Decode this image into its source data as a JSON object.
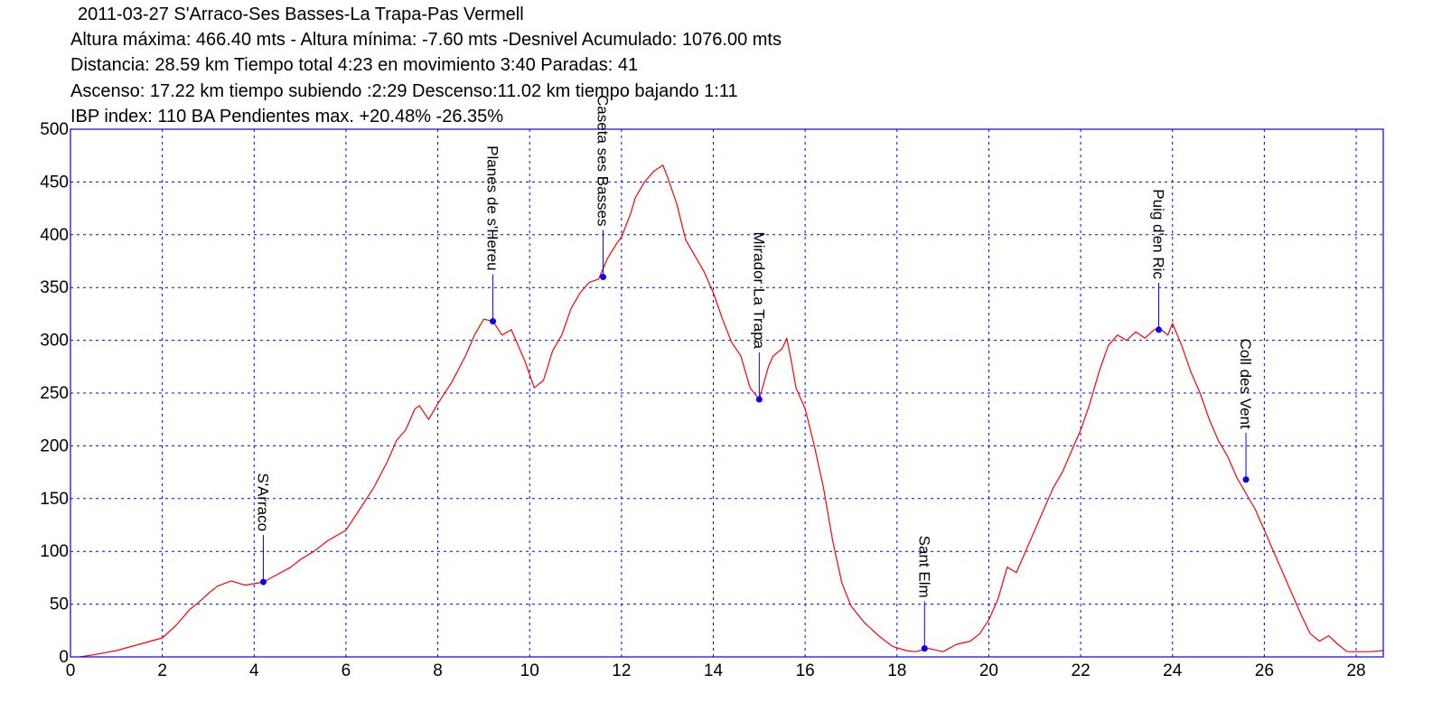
{
  "header": {
    "line1": "2011-03-27 S'Arraco-Ses Basses-La Trapa-Pas Vermell",
    "line2": "Altura máxima: 466.40 mts - Altura mínima: -7.60 mts -Desnivel Acumulado: 1076.00 mts",
    "line3": "Distancia: 28.59 km  Tiempo total 4:23  en movimiento 3:40 Paradas: 41",
    "line4": "Ascenso: 17.22 km  tiempo subiendo :2:29  Descenso:11.02 km tiempo bajando 1:11",
    "line5": " IBP index: 110 BA Pendientes max. +20.48%  -26.35%"
  },
  "chart_data": {
    "type": "line",
    "title": "2011-03-27 S'Arraco-Ses Basses-La Trapa-Pas Vermell",
    "xlabel": "",
    "ylabel": "",
    "xlim": [
      0,
      28.59
    ],
    "ylim": [
      0,
      500
    ],
    "grid": true,
    "xticks": [
      0,
      2,
      4,
      6,
      8,
      10,
      12,
      14,
      16,
      18,
      20,
      22,
      24,
      26,
      28
    ],
    "yticks": [
      0,
      50,
      100,
      150,
      200,
      250,
      300,
      350,
      400,
      450,
      500
    ],
    "colors": {
      "profile": "#ff0000",
      "waypoint": "#0000ff",
      "frame": "#0000ff",
      "grid": "#0000ff"
    },
    "series": [
      {
        "x": [
          0.2,
          0.5,
          1.0,
          1.5,
          2.0,
          2.3,
          2.6,
          2.8,
          3.0,
          3.2,
          3.5,
          3.8,
          4.2,
          4.5,
          4.8,
          5.0,
          5.3,
          5.6,
          6.0,
          6.3,
          6.6,
          6.9,
          7.1,
          7.3,
          7.5,
          7.6,
          7.8,
          8.0,
          8.3,
          8.6,
          8.8,
          9.0,
          9.2,
          9.4,
          9.6,
          9.7,
          9.9,
          10.1,
          10.3,
          10.5,
          10.7,
          10.9,
          11.1,
          11.3,
          11.5,
          11.7,
          11.9,
          12.0,
          12.2,
          12.3,
          12.5,
          12.7,
          12.9,
          13.0,
          13.2,
          13.4,
          13.6,
          13.8,
          14.0,
          14.2,
          14.4,
          14.6,
          14.8,
          15.0,
          15.2,
          15.3,
          15.5,
          15.6,
          15.7,
          15.8,
          16.0,
          16.2,
          16.4,
          16.6,
          16.8,
          17.0,
          17.3,
          17.6,
          17.9,
          18.2,
          18.4,
          18.7,
          19.0,
          19.3,
          19.6,
          19.8,
          20.0,
          20.2,
          20.3,
          20.4,
          20.6,
          20.8,
          21.0,
          21.2,
          21.4,
          21.6,
          21.8,
          22.0,
          22.2,
          22.4,
          22.6,
          22.8,
          23.0,
          23.2,
          23.4,
          23.6,
          23.7,
          23.9,
          24.0,
          24.2,
          24.4,
          24.6,
          24.8,
          25.0,
          25.2,
          25.4,
          25.6,
          25.8,
          26.0,
          26.2,
          26.5,
          26.8,
          27.0,
          27.2,
          27.4,
          27.6,
          27.8,
          28.0,
          28.3,
          28.59
        ],
        "values": [
          0,
          2,
          6,
          12,
          18,
          30,
          45,
          52,
          60,
          67,
          72,
          68,
          71,
          78,
          85,
          92,
          100,
          110,
          120,
          140,
          160,
          185,
          205,
          215,
          235,
          238,
          225,
          240,
          260,
          285,
          305,
          320,
          318,
          305,
          310,
          300,
          280,
          255,
          262,
          290,
          305,
          330,
          345,
          355,
          358,
          378,
          392,
          398,
          420,
          435,
          450,
          460,
          466,
          455,
          430,
          395,
          380,
          365,
          345,
          320,
          298,
          285,
          255,
          244,
          275,
          285,
          292,
          302,
          280,
          255,
          235,
          200,
          160,
          110,
          70,
          48,
          32,
          20,
          10,
          6,
          5,
          8,
          5,
          12,
          15,
          22,
          35,
          55,
          70,
          85,
          80,
          100,
          120,
          140,
          160,
          175,
          195,
          215,
          240,
          270,
          295,
          305,
          300,
          308,
          302,
          310,
          312,
          305,
          316,
          295,
          270,
          250,
          225,
          205,
          190,
          170,
          155,
          140,
          120,
          100,
          70,
          40,
          22,
          15,
          20,
          12,
          5,
          5,
          5,
          6
        ]
      }
    ],
    "waypoints": [
      {
        "name": "S'Arraco",
        "x": 4.2,
        "y": 71
      },
      {
        "name": "Planes de s'Hereu",
        "x": 9.2,
        "y": 318
      },
      {
        "name": "Caseta ses Basses",
        "x": 11.6,
        "y": 360
      },
      {
        "name": "Mirador La Trapa",
        "x": 15.0,
        "y": 244
      },
      {
        "name": "Sant Elm",
        "x": 18.6,
        "y": 8
      },
      {
        "name": "Puig d'en Ric",
        "x": 23.7,
        "y": 310
      },
      {
        "name": "Coll des Vent",
        "x": 25.6,
        "y": 168
      }
    ]
  }
}
